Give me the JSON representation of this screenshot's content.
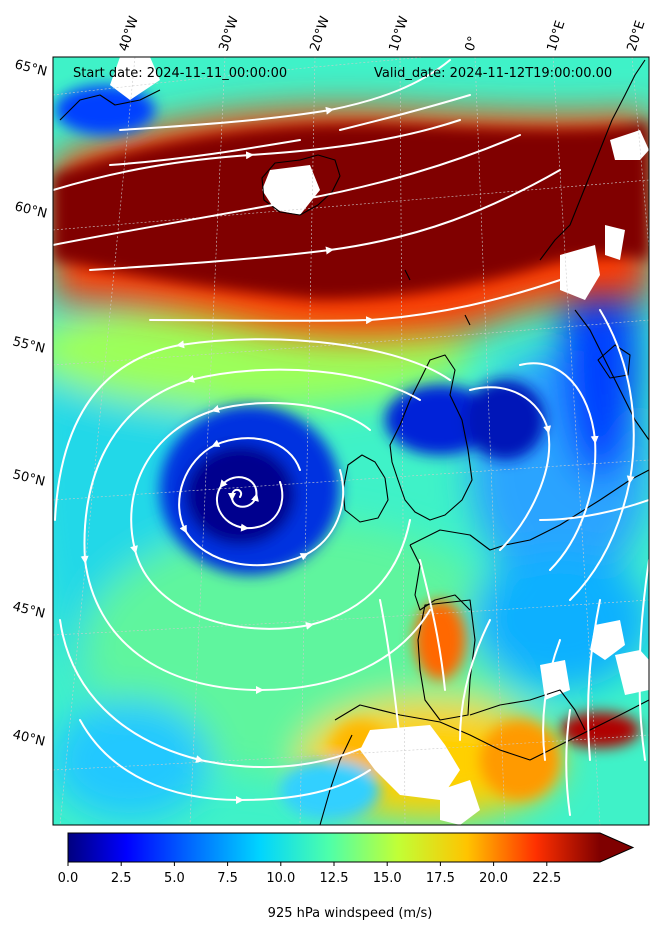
{
  "header": {
    "start_date": "Start date: 2024-11-11_00:00:00",
    "valid_date": "Valid_date: 2024-11-12T19:00:00.00"
  },
  "longitude_labels": [
    "40°W",
    "30°W",
    "20°W",
    "10°W",
    "0°",
    "10°E",
    "20°E"
  ],
  "latitude_labels": [
    "65°N",
    "60°N",
    "55°N",
    "50°N",
    "45°N",
    "40°N"
  ],
  "colorbar": {
    "title": "925 hPa windspeed (m/s)",
    "ticks": [
      "0.0",
      "2.5",
      "5.0",
      "7.5",
      "10.0",
      "12.5",
      "15.0",
      "17.5",
      "20.0",
      "22.5"
    ],
    "range": [
      0,
      25
    ],
    "colormap": "jet",
    "extend": "max"
  },
  "colors": {
    "streamline": "#ffffff",
    "coastline": "#000000",
    "gridline": "#cccccc"
  }
}
